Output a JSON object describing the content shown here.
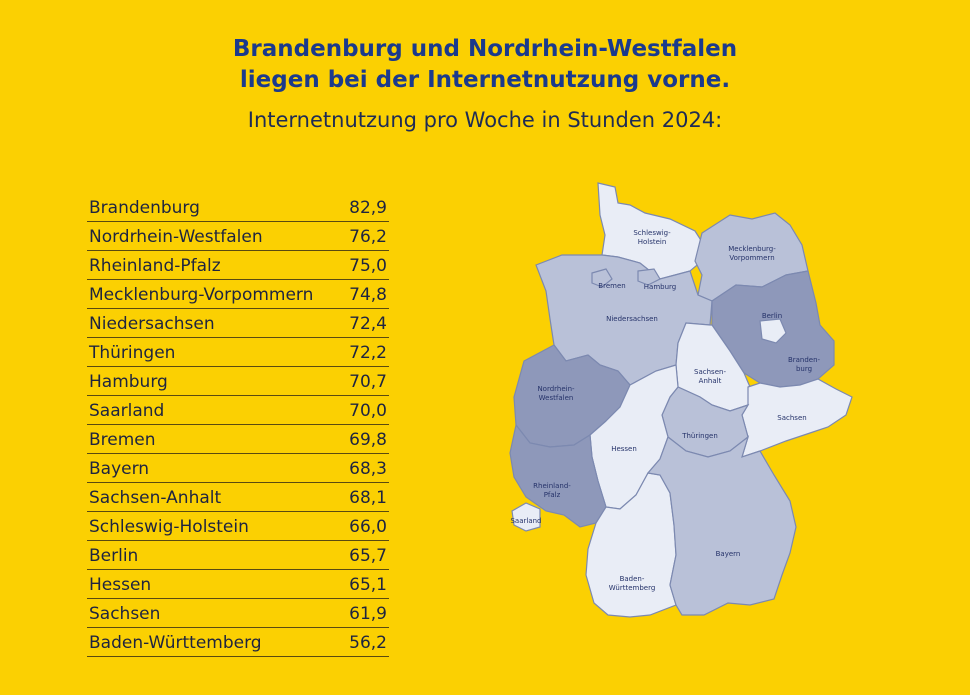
{
  "header": {
    "title_line1": "Brandenburg und Nordrhein-Westfalen",
    "title_line2": "liegen bei der Internetnutzung vorne.",
    "subtitle": "Internetnutzung pro Woche in Stunden 2024:"
  },
  "ranking": [
    {
      "state": "Brandenburg",
      "value": "82,9"
    },
    {
      "state": "Nordrhein-Westfalen",
      "value": "76,2"
    },
    {
      "state": "Rheinland-Pfalz",
      "value": "75,0"
    },
    {
      "state": "Mecklenburg-Vorpommern",
      "value": "74,8"
    },
    {
      "state": "Niedersachsen",
      "value": "72,4"
    },
    {
      "state": "Thüringen",
      "value": "72,2"
    },
    {
      "state": "Hamburg",
      "value": "70,7"
    },
    {
      "state": "Saarland",
      "value": "70,0"
    },
    {
      "state": "Bremen",
      "value": "69,8"
    },
    {
      "state": "Bayern",
      "value": "68,3"
    },
    {
      "state": "Sachsen-Anhalt",
      "value": "68,1"
    },
    {
      "state": "Schleswig-Holstein",
      "value": "66,0"
    },
    {
      "state": "Berlin",
      "value": "65,7"
    },
    {
      "state": "Hessen",
      "value": "65,1"
    },
    {
      "state": "Sachsen",
      "value": "61,9"
    },
    {
      "state": "Baden-Württemberg",
      "value": "56,2"
    }
  ],
  "map": {
    "labels": {
      "sh1": "Schleswig-",
      "sh2": "Holstein",
      "mv1": "Mecklenburg-",
      "mv2": "Vorpommern",
      "hb": "Bremen",
      "hh": "Hamburg",
      "ni": "Niedersachsen",
      "be": "Berlin",
      "bb1": "Branden-",
      "bb2": "burg",
      "st1": "Sachsen-",
      "st2": "Anhalt",
      "nw1": "Nordrhein-",
      "nw2": "Westfalen",
      "sn": "Sachsen",
      "he": "Hessen",
      "th": "Thüringen",
      "rp1": "Rheinland-",
      "rp2": "Pfalz",
      "sl": "Saarland",
      "by": "Bayern",
      "bw1": "Baden-",
      "bw2": "Württemberg"
    },
    "colors": {
      "background": "#FBD002",
      "tier_light": "#E9EDF6",
      "tier_mid": "#B9C1D8",
      "tier_dark": "#8E98BA",
      "border": "#7C89B0",
      "title_blue": "#1B3A8C"
    }
  }
}
